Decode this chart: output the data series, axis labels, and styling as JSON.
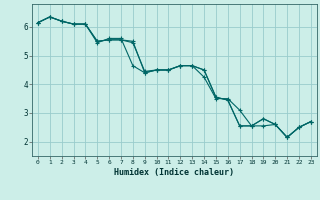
{
  "xlabel": "Humidex (Indice chaleur)",
  "bg_color": "#cceee8",
  "grid_color": "#99cccc",
  "line_color": "#006666",
  "xlim_min": -0.5,
  "xlim_max": 23.5,
  "ylim_min": 1.5,
  "ylim_max": 6.8,
  "xticks": [
    0,
    1,
    2,
    3,
    4,
    5,
    6,
    7,
    8,
    9,
    10,
    11,
    12,
    13,
    14,
    15,
    16,
    17,
    18,
    19,
    20,
    21,
    22,
    23
  ],
  "yticks": [
    2,
    3,
    4,
    5,
    6
  ],
  "line1_x": [
    0,
    1,
    2,
    3,
    4,
    5,
    6,
    7,
    8,
    9,
    10,
    11,
    12,
    13,
    14,
    15,
    16,
    17,
    18,
    19,
    20,
    21,
    22,
    23
  ],
  "line1_y": [
    6.15,
    6.35,
    6.2,
    6.1,
    6.1,
    5.45,
    5.6,
    5.6,
    4.65,
    4.4,
    4.5,
    4.5,
    4.65,
    4.65,
    4.25,
    3.5,
    3.5,
    3.1,
    2.55,
    2.8,
    2.6,
    2.15,
    2.5,
    2.7
  ],
  "line2_x": [
    0,
    1,
    2,
    3,
    4,
    5,
    6,
    7,
    8,
    9,
    10,
    11,
    12,
    13,
    14,
    15,
    16,
    17,
    18,
    19,
    20,
    21,
    22,
    23
  ],
  "line2_y": [
    6.15,
    6.35,
    6.2,
    6.1,
    6.1,
    5.5,
    5.55,
    5.55,
    5.45,
    4.45,
    4.5,
    4.5,
    4.65,
    4.65,
    4.5,
    3.55,
    3.45,
    2.55,
    2.55,
    2.55,
    2.6,
    2.15,
    2.5,
    2.7
  ],
  "line3_x": [
    0,
    1,
    2,
    3,
    4,
    5,
    6,
    7,
    8,
    9,
    10,
    11,
    12,
    13,
    14,
    15,
    16,
    17,
    18,
    19,
    20,
    21,
    22,
    23
  ],
  "line3_y": [
    6.15,
    6.35,
    6.2,
    6.1,
    6.1,
    5.5,
    5.55,
    5.55,
    5.5,
    4.4,
    4.5,
    4.5,
    4.65,
    4.65,
    4.5,
    3.55,
    3.45,
    2.55,
    2.55,
    2.8,
    2.6,
    2.15,
    2.5,
    2.7
  ]
}
